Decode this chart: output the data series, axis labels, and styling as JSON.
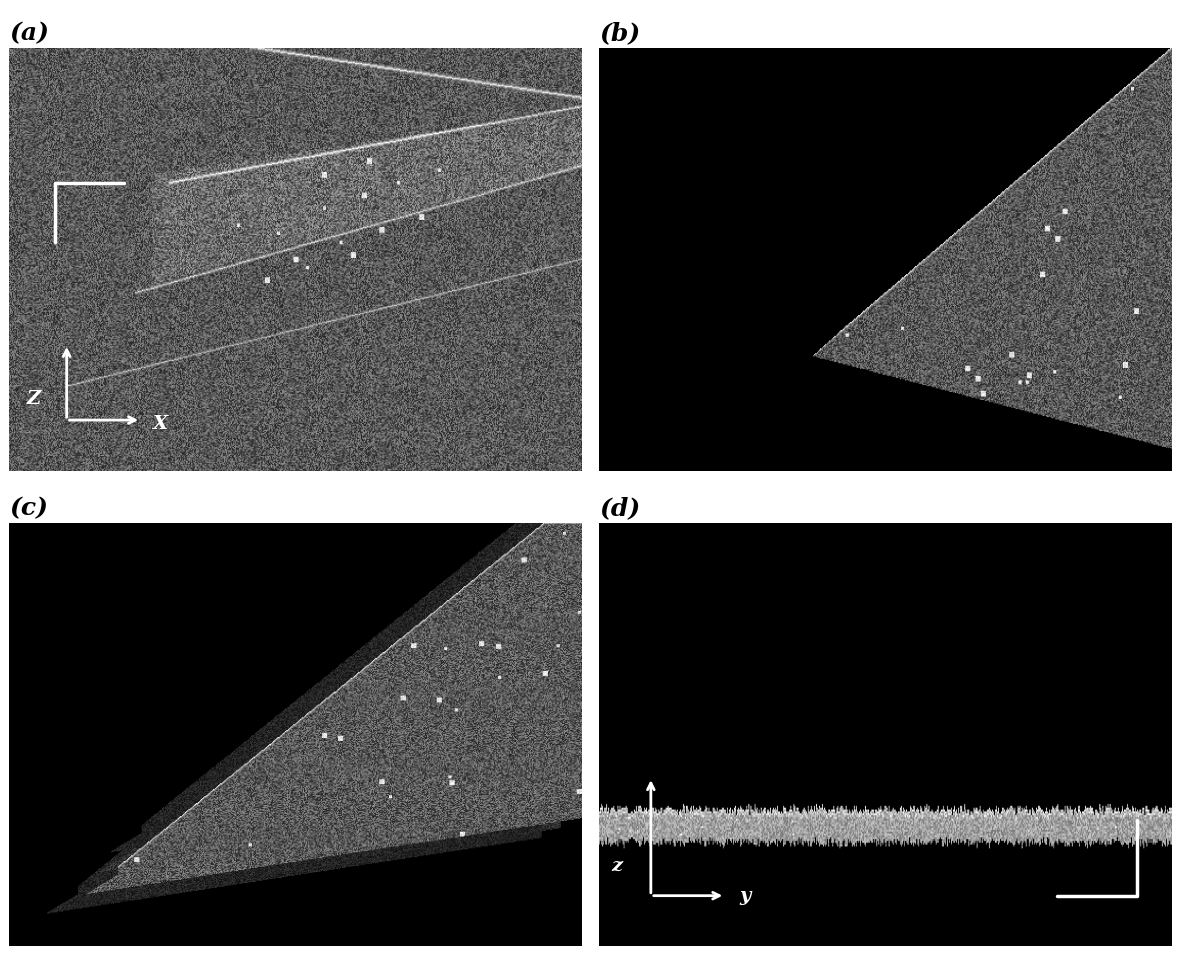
{
  "fig_width": 11.81,
  "fig_height": 9.56,
  "background_color": "#ffffff",
  "panel_labels": [
    "(a)",
    "(b)",
    "(c)",
    "(d)"
  ],
  "panel_label_style": "italic",
  "panel_label_fontsize": 18,
  "panel_label_fontweight": "bold",
  "label_color": "#000000",
  "scale_bar_color": "#ffffff",
  "arrow_color": "#ffffff",
  "label_x": "X",
  "label_z": "Z",
  "label_y": "y",
  "label_z2": "z"
}
